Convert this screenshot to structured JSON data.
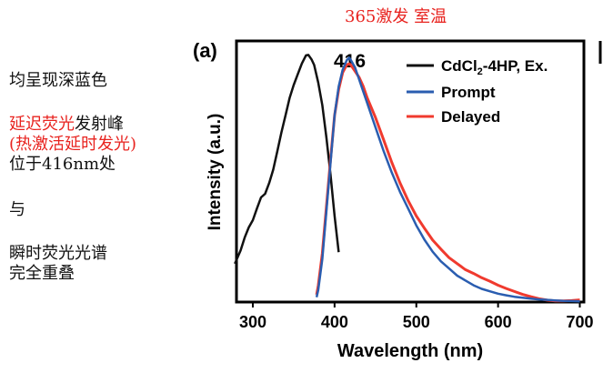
{
  "header_note": "365激发   室温",
  "notes": {
    "line1": "均呈现深蓝色",
    "line2_red": "延迟荧光",
    "line2_black": "发射峰",
    "line3_red": "(热激活延时发光)",
    "line4": "位于416nm处",
    "line5": "与",
    "line6": "瞬时荧光光谱",
    "line7": "完全重叠"
  },
  "colors": {
    "excitation": "#111111",
    "prompt": "#2a5db0",
    "delayed": "#f03a2e",
    "annotation": "#e8231f"
  },
  "chart_data": {
    "type": "line",
    "panel_label": "(a)",
    "xlabel": "Wavelength (nm)",
    "ylabel": "Intensity (a.u.)",
    "xlim": [
      280,
      705
    ],
    "ylim": [
      0,
      1.09
    ],
    "xticks": [
      300,
      400,
      500,
      600,
      700
    ],
    "peak_label": "416",
    "legend_position": "top-right",
    "series": [
      {
        "name": "CdCl2-4HP, Ex.",
        "legend_main": "CdCl",
        "legend_sub": "2",
        "legend_rest": "-4HP, Ex.",
        "color_key": "excitation",
        "x": [
          278,
          285,
          290,
          295,
          300,
          305,
          310,
          315,
          320,
          325,
          330,
          335,
          340,
          345,
          350,
          355,
          360,
          365,
          368,
          372,
          375,
          380,
          385,
          390,
          395,
          400,
          405
        ],
        "y": [
          0.16,
          0.21,
          0.26,
          0.3,
          0.33,
          0.38,
          0.43,
          0.45,
          0.5,
          0.56,
          0.64,
          0.72,
          0.79,
          0.86,
          0.91,
          0.95,
          0.99,
          1.02,
          1.02,
          1.0,
          0.98,
          0.91,
          0.82,
          0.69,
          0.54,
          0.37,
          0.22
        ]
      },
      {
        "name": "Prompt",
        "color_key": "prompt",
        "x": [
          378,
          380,
          385,
          390,
          395,
          400,
          405,
          410,
          415,
          418,
          420,
          425,
          430,
          435,
          440,
          450,
          460,
          470,
          480,
          490,
          500,
          510,
          520,
          530,
          540,
          550,
          560,
          570,
          580,
          590,
          600,
          610,
          620,
          630,
          640,
          650,
          660,
          670,
          680,
          690,
          700
        ],
        "y": [
          0.02,
          0.05,
          0.18,
          0.38,
          0.58,
          0.78,
          0.9,
          0.97,
          1.01,
          1.02,
          1.01,
          0.98,
          0.93,
          0.88,
          0.83,
          0.73,
          0.63,
          0.54,
          0.46,
          0.39,
          0.32,
          0.26,
          0.21,
          0.17,
          0.14,
          0.11,
          0.09,
          0.07,
          0.055,
          0.045,
          0.035,
          0.028,
          0.022,
          0.018,
          0.014,
          0.011,
          0.009,
          0.007,
          0.005,
          0.004,
          0.003
        ]
      },
      {
        "name": "Delayed",
        "color_key": "delayed",
        "x": [
          378,
          380,
          385,
          390,
          395,
          400,
          405,
          410,
          415,
          418,
          420,
          425,
          430,
          435,
          440,
          450,
          460,
          470,
          480,
          490,
          500,
          510,
          520,
          530,
          540,
          550,
          560,
          570,
          580,
          590,
          600,
          610,
          620,
          630,
          640,
          650,
          660,
          670,
          680,
          690,
          700
        ],
        "y": [
          0.02,
          0.06,
          0.2,
          0.4,
          0.6,
          0.79,
          0.9,
          0.97,
          1.0,
          1.0,
          0.99,
          0.96,
          0.93,
          0.89,
          0.84,
          0.76,
          0.67,
          0.58,
          0.5,
          0.43,
          0.37,
          0.32,
          0.27,
          0.23,
          0.19,
          0.16,
          0.13,
          0.11,
          0.09,
          0.075,
          0.06,
          0.05,
          0.042,
          0.035,
          0.03,
          0.025,
          0.02,
          0.016,
          0.013,
          0.01,
          0.008
        ]
      }
    ]
  }
}
